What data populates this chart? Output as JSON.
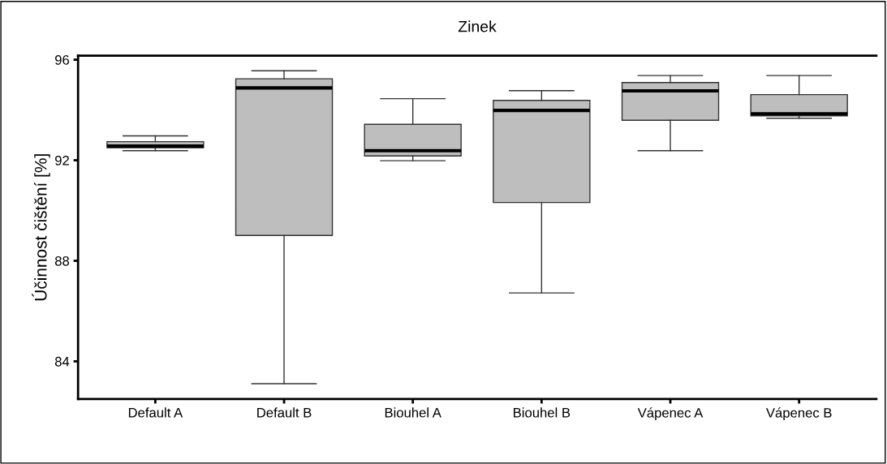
{
  "chart_data": {
    "type": "box",
    "title": "Zinek",
    "ylabel": "Účinnost čištění [%]",
    "categories": [
      "Default A",
      "Default B",
      "Biouhel A",
      "Biouhel B",
      "Vápenec A",
      "Vápenec B"
    ],
    "boxes": [
      {
        "low": 92.38,
        "q1": 92.5,
        "median": 92.56,
        "q3": 92.74,
        "high": 92.97
      },
      {
        "low": 83.11,
        "q1": 89.01,
        "median": 94.88,
        "q3": 95.24,
        "high": 95.56
      },
      {
        "low": 91.98,
        "q1": 92.17,
        "median": 92.38,
        "q3": 93.43,
        "high": 94.45
      },
      {
        "low": 86.72,
        "q1": 90.32,
        "median": 93.98,
        "q3": 94.38,
        "high": 94.77
      },
      {
        "low": 92.38,
        "q1": 93.59,
        "median": 94.76,
        "q3": 95.09,
        "high": 95.37
      },
      {
        "low": 93.67,
        "q1": 93.77,
        "median": 93.85,
        "q3": 94.61,
        "high": 95.37
      }
    ],
    "color": "#bebebe",
    "ylim": [
      82.5,
      96.16
    ],
    "yticks": [
      84,
      88,
      92,
      96
    ],
    "grid": false
  }
}
